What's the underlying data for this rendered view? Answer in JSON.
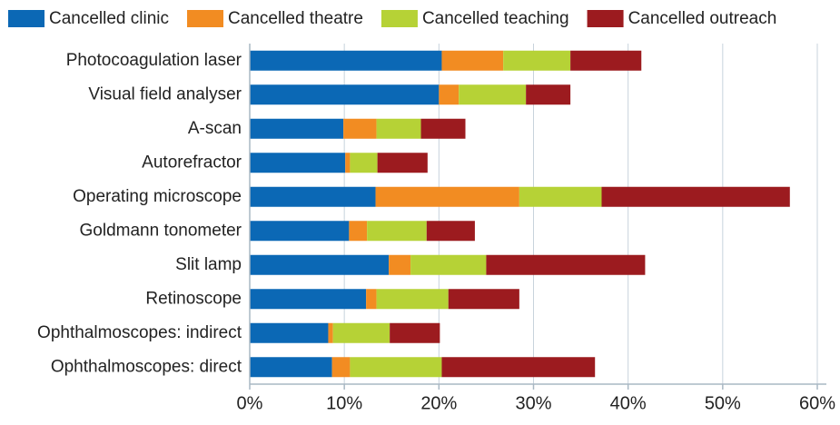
{
  "chart_data": {
    "type": "stacked-barh",
    "categories": [
      "Photocoagulation laser",
      "Visual field analyser",
      "A-scan",
      "Autorefractor",
      "Operating microscope",
      "Goldmann tonometer",
      "Slit lamp",
      "Retinoscope",
      "Ophthalmoscopes: indirect",
      "Ophthalmoscopes: direct"
    ],
    "series": [
      {
        "name": "Cancelled clinic",
        "color": "#0b68b5",
        "values": [
          20.3,
          20.0,
          9.9,
          10.1,
          13.3,
          10.5,
          14.7,
          12.3,
          8.3,
          8.7
        ]
      },
      {
        "name": "Cancelled theatre",
        "color": "#f28c22",
        "values": [
          6.5,
          2.1,
          3.5,
          0.5,
          15.2,
          1.9,
          2.3,
          1.1,
          0.5,
          1.9
        ]
      },
      {
        "name": "Cancelled teaching",
        "color": "#b6d236",
        "values": [
          7.1,
          7.1,
          4.7,
          2.9,
          8.7,
          6.3,
          8.0,
          7.6,
          6.0,
          9.7
        ]
      },
      {
        "name": "Cancelled outreach",
        "color": "#9c1b1f",
        "values": [
          7.5,
          4.7,
          4.7,
          5.3,
          19.9,
          5.1,
          16.8,
          7.5,
          5.3,
          16.2
        ]
      }
    ],
    "xlim": [
      0,
      60
    ],
    "xticks": [
      {
        "value": 0,
        "label": "0%"
      },
      {
        "value": 10,
        "label": "10%"
      },
      {
        "value": 20,
        "label": "20%"
      },
      {
        "value": 30,
        "label": "30%"
      },
      {
        "value": 40,
        "label": "40%"
      },
      {
        "value": 50,
        "label": "50%"
      },
      {
        "value": 60,
        "label": "60%"
      }
    ],
    "grid": true,
    "legend": "top"
  }
}
